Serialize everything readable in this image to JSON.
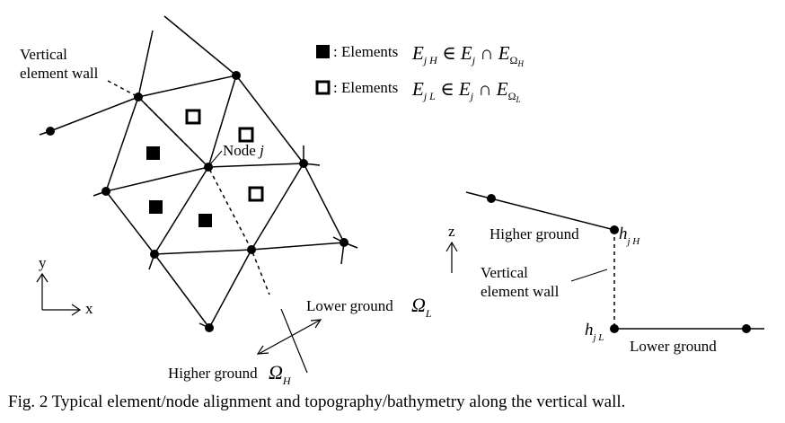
{
  "mesh": {
    "vertical_wall_label": [
      "Vertical",
      "element wall"
    ],
    "node_label": "Node",
    "node_symbol": "j"
  },
  "legend": {
    "filled_prefix": ": Elements",
    "open_prefix": ": Elements",
    "filled_symbol": "E",
    "filled_sub": "j H",
    "open_symbol": "E",
    "open_sub": "j L",
    "relation": "∈",
    "set_symbol": "E",
    "set_sub": "j",
    "intersection": "∩",
    "domain_symbol": "E",
    "domain_sub": "Ω",
    "filled_domain_subsub": "H",
    "open_domain_subsub": "L"
  },
  "axes": {
    "y": "y",
    "x": "x",
    "z": "z"
  },
  "regions": {
    "lower_ground": "Lower ground",
    "higher_ground": "Higher ground",
    "omega": "Ω",
    "lower_sub": "L",
    "higher_sub": "H"
  },
  "profile": {
    "higher_ground": "Higher ground",
    "vertical_wall": [
      "Vertical",
      "element wall"
    ],
    "lower_ground": "Lower ground",
    "h_symbol": "h",
    "h_high_sub": "j H",
    "h_low_sub": "j L"
  },
  "caption": "Fig. 2  Typical element/node alignment and topography/bathymetry along the vertical wall."
}
